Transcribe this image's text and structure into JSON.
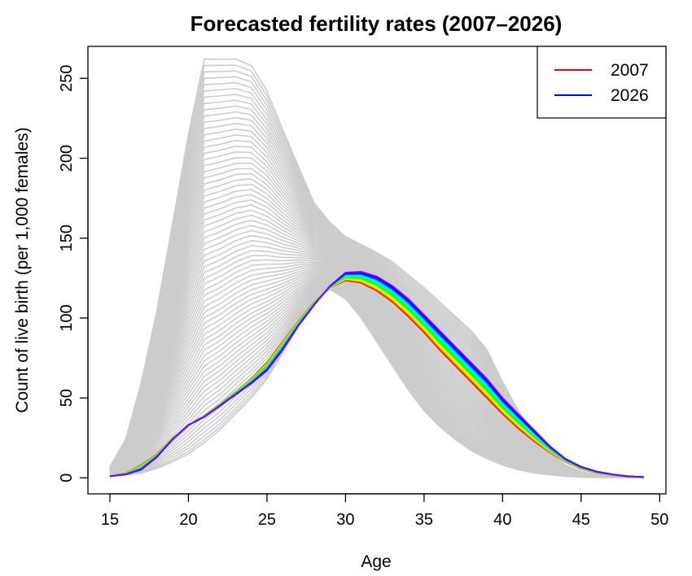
{
  "chart_data": {
    "type": "line",
    "title": "Forecasted fertility rates (2007–2026)",
    "xlabel": "Age",
    "ylabel": "Count of live birth (per 1,000 females)",
    "xlim": [
      13.6,
      50.4
    ],
    "ylim": [
      -10,
      270
    ],
    "xticks": [
      "15",
      "20",
      "25",
      "30",
      "35",
      "40",
      "45",
      "50"
    ],
    "yticks": [
      "0",
      "50",
      "100",
      "150",
      "200",
      "250"
    ],
    "grid": false,
    "legend": {
      "position": "top-right",
      "entries": [
        {
          "label": "2007",
          "color": "#ff0000"
        },
        {
          "label": "2026",
          "color": "#0000ff"
        }
      ]
    },
    "x": [
      15,
      16,
      17,
      18,
      19,
      20,
      21,
      22,
      23,
      24,
      25,
      26,
      27,
      28,
      29,
      30,
      31,
      32,
      33,
      34,
      35,
      36,
      37,
      38,
      39,
      40,
      41,
      42,
      43,
      44,
      45,
      46,
      47,
      48,
      49
    ],
    "historical_curves": {
      "color": "#cccccc",
      "count": 70,
      "envelope_low": [
        1,
        2,
        3,
        6,
        10,
        15,
        22,
        30,
        40,
        50,
        62,
        78,
        95,
        110,
        118,
        112,
        100,
        85,
        70,
        55,
        42,
        32,
        24,
        17,
        12,
        8,
        5,
        3,
        2,
        1,
        0.5,
        0.3,
        0.2,
        0.1,
        0.05
      ],
      "envelope_high": [
        7,
        24,
        60,
        105,
        160,
        215,
        262,
        262,
        262,
        258,
        242,
        218,
        195,
        172,
        160,
        151,
        146,
        141,
        135,
        127,
        119,
        110,
        101,
        92,
        80,
        60,
        42,
        28,
        16,
        8,
        4,
        2,
        1,
        0.5,
        0.2
      ]
    },
    "series": [
      {
        "year": 2007,
        "color": "#ff0000",
        "values": [
          1,
          3,
          8,
          15,
          25,
          33,
          39,
          46,
          54,
          62,
          72,
          85,
          98,
          110,
          119,
          123.5,
          122,
          117,
          110,
          101,
          91,
          80,
          70,
          60,
          50,
          40,
          31,
          23,
          16,
          10,
          5.5,
          3,
          1.6,
          0.8,
          0.4
        ]
      },
      {
        "year": 2026,
        "color": "#0000ff",
        "values": [
          1,
          2,
          5,
          13,
          24,
          33,
          38,
          45,
          52,
          59,
          67,
          80,
          95,
          108,
          120,
          128.5,
          129,
          126,
          120,
          112,
          102,
          92,
          82,
          72,
          62,
          50,
          40,
          30,
          20,
          12,
          7,
          4,
          2.2,
          1,
          0.5
        ]
      }
    ]
  }
}
